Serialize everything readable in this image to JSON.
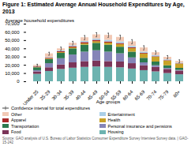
{
  "chart_data": {
    "type": "bar",
    "stacked": true,
    "title": "Figure 1: Estimated Average Annual Household Expenditures by Age, 2013",
    "ylabel": "Average household expenditures",
    "xlabel": "Age groups",
    "categories": [
      "Under 25",
      "25-29",
      "30-34",
      "35-39",
      "40-44",
      "45-49",
      "50-54",
      "55-59",
      "60-64",
      "65-69",
      "70-74",
      "75-79",
      "80+"
    ],
    "series": [
      {
        "name": "Housing",
        "color": "#6db3b0",
        "values": [
          9000,
          12500,
          15000,
          16500,
          17500,
          18000,
          17500,
          17000,
          15500,
          13500,
          12000,
          10000,
          8500
        ]
      },
      {
        "name": "Food",
        "color": "#7b3558",
        "values": [
          3000,
          4500,
          5500,
          6500,
          7000,
          7200,
          7000,
          7000,
          6500,
          6000,
          5500,
          5000,
          4500
        ]
      },
      {
        "name": "Personal insurance and pensions",
        "color": "#8585b8",
        "values": [
          1500,
          5000,
          7500,
          9500,
          11500,
          12500,
          11500,
          10000,
          7000,
          3500,
          2000,
          1200,
          800
        ]
      },
      {
        "name": "Transportation",
        "color": "#2d7a4f",
        "values": [
          3500,
          5000,
          6500,
          7500,
          8500,
          9000,
          8500,
          8000,
          7000,
          5500,
          4500,
          3200,
          2500
        ]
      },
      {
        "name": "Health",
        "color": "#c9a227",
        "values": [
          400,
          700,
          900,
          1200,
          1500,
          2000,
          2500,
          3200,
          4200,
          5200,
          5800,
          5800,
          5200
        ]
      },
      {
        "name": "Apparel",
        "color": "#aa2929",
        "values": [
          700,
          900,
          1100,
          1400,
          1600,
          1600,
          1400,
          1200,
          1000,
          800,
          600,
          500,
          400
        ]
      },
      {
        "name": "Entertainment",
        "color": "#aacfe8",
        "values": [
          500,
          800,
          1000,
          1200,
          1400,
          1700,
          2000,
          2000,
          1800,
          1600,
          1400,
          1000,
          800
        ]
      },
      {
        "name": "Other",
        "color": "#f2c9b5",
        "values": [
          1400,
          4500,
          2500,
          3000,
          4500,
          5000,
          6000,
          5500,
          5500,
          5000,
          3500,
          3000,
          2000
        ]
      }
    ],
    "error_bars": {
      "name": "Confidence interval for total expenditures",
      "color": "#444444",
      "values": [
        1200,
        1800,
        2000,
        2200,
        2500,
        2500,
        2500,
        2500,
        2500,
        2500,
        2000,
        2000,
        1800
      ]
    },
    "ylim": [
      0,
      70000
    ],
    "yticks": [
      0,
      {
        "value": 10000,
        "label": "10,000"
      },
      {
        "value": 20000,
        "label": "20,000"
      },
      {
        "value": 30000,
        "label": "30,000"
      },
      {
        "value": 40000,
        "label": "40,000"
      },
      {
        "value": 50000,
        "label": "50,000"
      },
      {
        "value": 60000,
        "label": "60,000"
      },
      {
        "value": 70000,
        "label": "70,000"
      }
    ],
    "grid": false,
    "legend": "bottom",
    "annotations": [
      "Source: GAO analysis of U.S. Bureau of Labor Statistics Consumer Expenditure Survey Interview Survey data.  |  GAO-15-242"
    ]
  }
}
